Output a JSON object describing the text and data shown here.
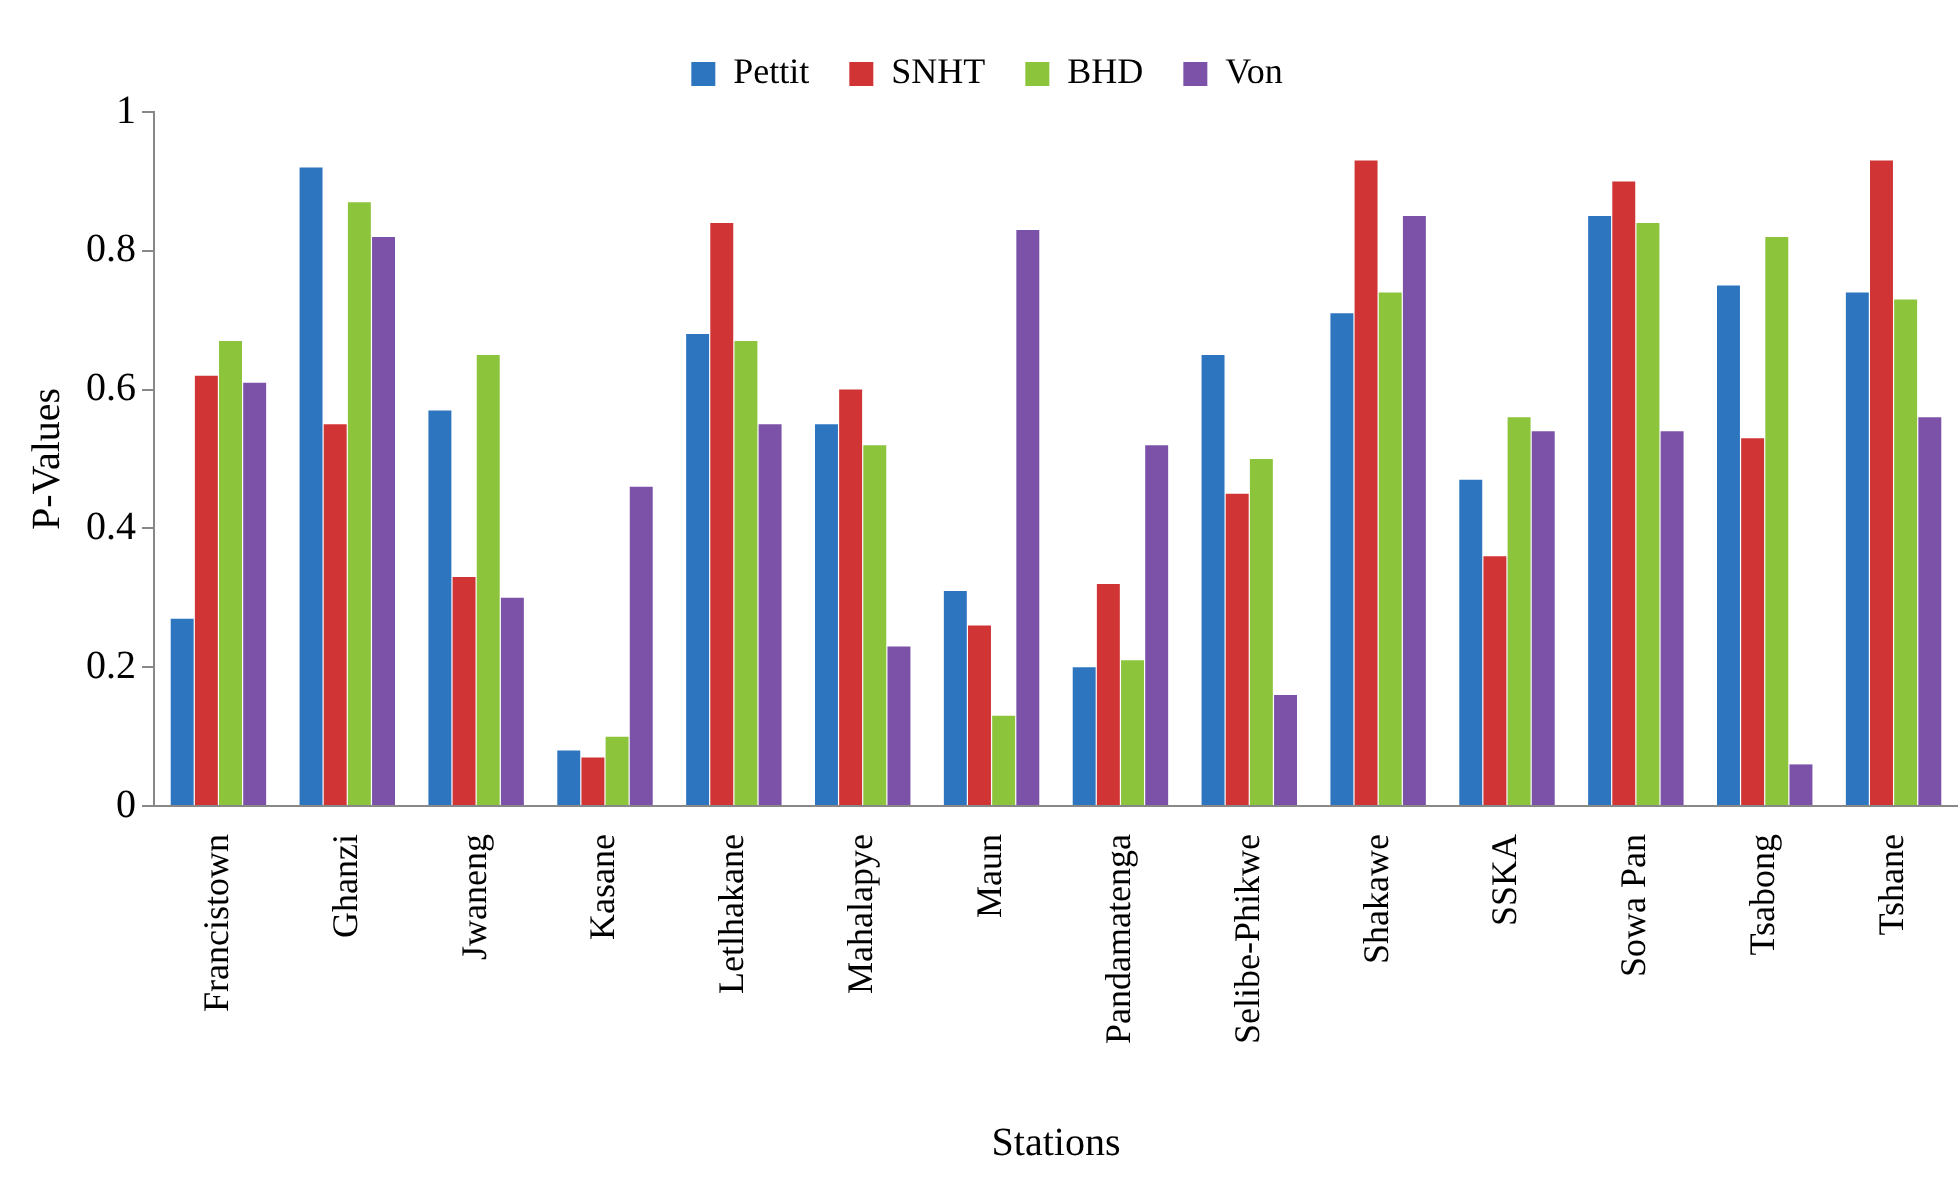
{
  "chart_data": {
    "type": "bar",
    "xlabel": "Stations",
    "ylabel": "P-Values",
    "categories": [
      "Francistown",
      "Ghanzi",
      "Jwaneng",
      "Kasane",
      "Letlhakane",
      "Mahalapye",
      "Maun",
      "Pandamatenga",
      "Selibe-Phikwe",
      "Shakawe",
      "SSKA",
      "Sowa Pan",
      "Tsabong",
      "Tshane"
    ],
    "series": [
      {
        "name": "Pettit",
        "color": "#2e75c0",
        "values": [
          0.27,
          0.92,
          0.57,
          0.08,
          0.68,
          0.55,
          0.31,
          0.2,
          0.65,
          0.71,
          0.47,
          0.85,
          0.75,
          0.74
        ]
      },
      {
        "name": "SNHT",
        "color": "#d03434",
        "values": [
          0.62,
          0.55,
          0.33,
          0.07,
          0.84,
          0.6,
          0.26,
          0.32,
          0.45,
          0.93,
          0.36,
          0.9,
          0.53,
          0.93
        ]
      },
      {
        "name": "BHD",
        "color": "#8cc43c",
        "values": [
          0.67,
          0.87,
          0.65,
          0.1,
          0.67,
          0.52,
          0.13,
          0.21,
          0.5,
          0.74,
          0.56,
          0.84,
          0.82,
          0.73
        ]
      },
      {
        "name": "Von",
        "color": "#7b52a8",
        "values": [
          0.61,
          0.82,
          0.3,
          0.46,
          0.55,
          0.23,
          0.83,
          0.52,
          0.16,
          0.85,
          0.54,
          0.54,
          0.06,
          0.56
        ]
      }
    ],
    "ylim": [
      0,
      1
    ],
    "yticks": [
      0,
      0.2,
      0.4,
      0.6,
      0.8,
      1
    ],
    "grid": false,
    "legend": "top"
  }
}
